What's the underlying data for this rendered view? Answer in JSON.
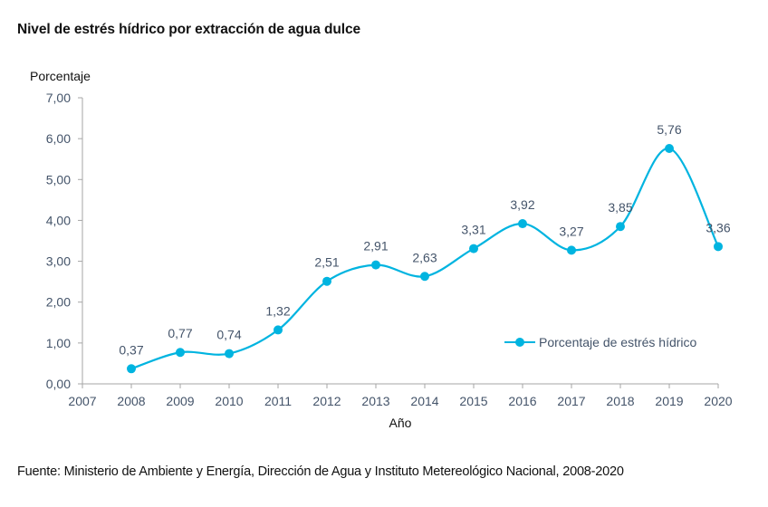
{
  "title": "Nivel de estrés hídrico por extracción de agua dulce",
  "source": "Fuente: Ministerio de Ambiente y Energía, Dirección de Agua y Instituto Metereológico Nacional, 2008-2020",
  "colors": {
    "series": "#00B4E0",
    "axis_text": "#44546A",
    "axis_line": "#A6A6A6"
  },
  "chart_data": {
    "type": "line",
    "title": "Nivel de estrés hídrico por extracción de agua dulce",
    "xlabel": "Año",
    "ylabel": "Porcentaje",
    "x_ticks": [
      "2007",
      "2008",
      "2009",
      "2010",
      "2011",
      "2012",
      "2013",
      "2014",
      "2015",
      "2016",
      "2017",
      "2018",
      "2019",
      "2020"
    ],
    "y_ticks": [
      "0,00",
      "1,00",
      "2,00",
      "3,00",
      "4,00",
      "5,00",
      "6,00",
      "7,00"
    ],
    "xlim": [
      2007,
      2020
    ],
    "ylim": [
      0,
      7
    ],
    "grid": false,
    "smooth": true,
    "legend": {
      "position": "right-inside-lower",
      "entries": [
        "Porcentaje de estrés hídrico"
      ]
    },
    "series": [
      {
        "name": "Porcentaje de estrés hídrico",
        "x": [
          2008,
          2009,
          2010,
          2011,
          2012,
          2013,
          2014,
          2015,
          2016,
          2017,
          2018,
          2019,
          2020
        ],
        "values": [
          0.37,
          0.77,
          0.74,
          1.32,
          2.51,
          2.91,
          2.63,
          3.31,
          3.92,
          3.27,
          3.85,
          5.76,
          3.36
        ],
        "labels": [
          "0,37",
          "0,77",
          "0,74",
          "1,32",
          "2,51",
          "2,91",
          "2,63",
          "3,31",
          "3,92",
          "3,27",
          "3,85",
          "5,76",
          "3,36"
        ]
      }
    ]
  }
}
